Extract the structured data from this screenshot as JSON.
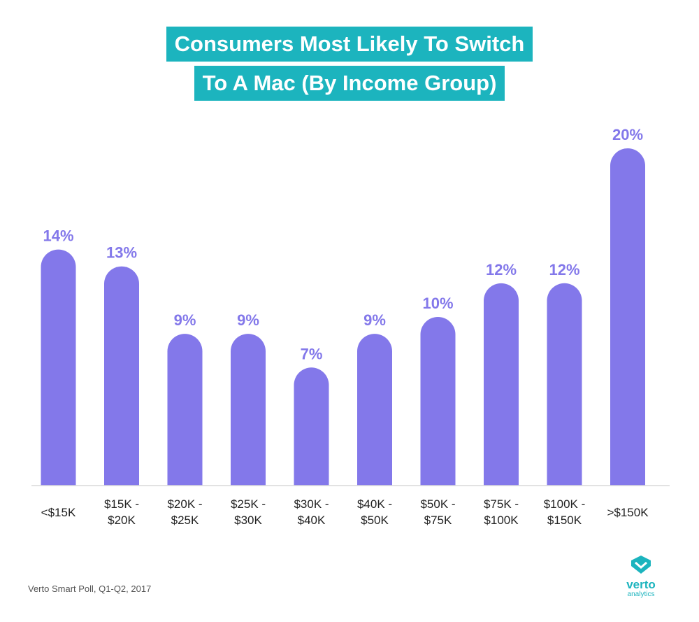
{
  "chart_data": {
    "type": "bar",
    "title_lines": [
      "Consumers Most Likely To Switch",
      "To A Mac (By Income Group)"
    ],
    "categories": [
      [
        "<$15K"
      ],
      [
        "$15K -",
        "$20K"
      ],
      [
        "$20K -",
        "$25K"
      ],
      [
        "$25K -",
        "$30K"
      ],
      [
        "$30K -",
        "$40K"
      ],
      [
        "$40K -",
        "$50K"
      ],
      [
        "$50K -",
        "$75K"
      ],
      [
        "$75K -",
        "$100K"
      ],
      [
        "$100K -",
        "$150K"
      ],
      [
        ">$150K"
      ]
    ],
    "values": [
      14,
      13,
      9,
      9,
      7,
      9,
      10,
      12,
      12,
      20
    ],
    "value_labels": [
      "14%",
      "13%",
      "9%",
      "9%",
      "7%",
      "9%",
      "10%",
      "12%",
      "12%",
      "20%"
    ],
    "ylim": [
      0,
      20
    ],
    "grid": false,
    "colors": {
      "bar": "#8378ea",
      "title_background": "#1cb4be"
    }
  },
  "source": "Verto Smart Poll, Q1-Q2, 2017",
  "logo": {
    "icon": "verto-logo-icon",
    "word": "verto",
    "sub": "analytics"
  }
}
